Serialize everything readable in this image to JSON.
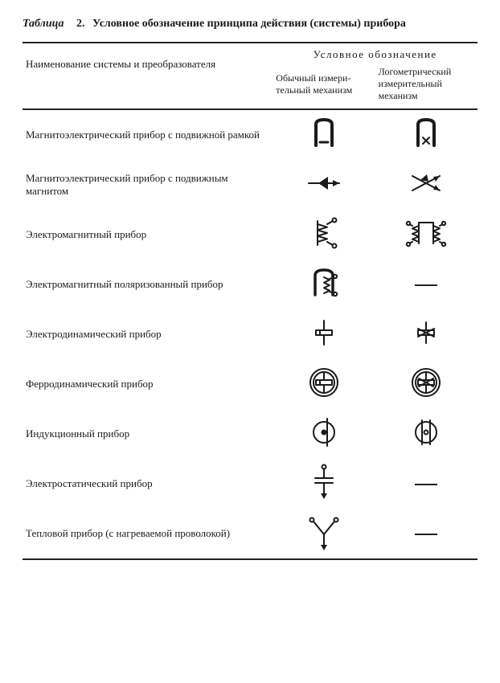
{
  "caption": {
    "label": "Таблица",
    "number": "2.",
    "title": "Условное обозначение принципа действия (системы) прибора"
  },
  "header": {
    "name": "Наименование системы и преобразователя",
    "group": "Условное обозначение",
    "col1": "Обычный измери-тельный механизм",
    "col2": "Логометрический измерительный механизм"
  },
  "rows": [
    {
      "name": "Магнитоэлектрический прибор с подвижной рамкой",
      "sym1": "magnet_frame",
      "sym2": "magnet_frame_x"
    },
    {
      "name": "Магнитоэлектрический прибор с подвижным магнитом",
      "sym1": "arrow_solid",
      "sym2": "arrow_cross"
    },
    {
      "name": "Электромагнитный прибор",
      "sym1": "em_single",
      "sym2": "em_double"
    },
    {
      "name": "Электромагнитный поляризованный прибор",
      "sym1": "em_polarized",
      "sym2": "dash"
    },
    {
      "name": "Электродинамический прибор",
      "sym1": "electrodyn",
      "sym2": "electrodyn_logo"
    },
    {
      "name": "Ферродинамический прибор",
      "sym1": "ferrodyn",
      "sym2": "ferrodyn_logo"
    },
    {
      "name": "Индукционный прибор",
      "sym1": "induction",
      "sym2": "induction_logo"
    },
    {
      "name": "Электростатический прибор",
      "sym1": "electrostatic",
      "sym2": "dash"
    },
    {
      "name": "Тепловой прибор (с нагреваемой проволокой)",
      "sym1": "thermal",
      "sym2": "dash"
    }
  ],
  "style": {
    "stroke": "#1a1a1a",
    "stroke_width": 2,
    "fill": "#1a1a1a",
    "symbol_box": 50
  }
}
